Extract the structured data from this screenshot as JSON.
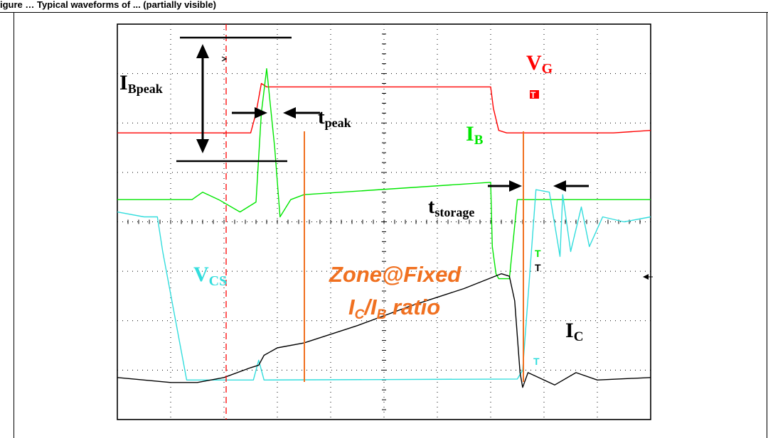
{
  "header": {
    "caption": "igure … Typical waveforms of ... (partially visible)"
  },
  "colors": {
    "vg": "#ff0000",
    "ib": "#00e600",
    "vcs": "#33dddd",
    "ic": "#000000",
    "zone": "#f07020",
    "grid": "#000000"
  },
  "labels": {
    "ibpeak": {
      "main": "I",
      "sub": "Bpeak"
    },
    "tpeak": {
      "main": "t",
      "sub": "peak"
    },
    "vg": {
      "main": "V",
      "sub": "G"
    },
    "ib": {
      "main": "I",
      "sub": "B"
    },
    "tstorage": {
      "main": "t",
      "sub": "storage"
    },
    "vcs": {
      "main": "V",
      "sub": "CS"
    },
    "zone_line1": "Zone@Fixed",
    "zone_ratio": {
      "i1": "I",
      "s1": "C",
      "slash": "/",
      "i2": "I",
      "s2": "B",
      "tail": " ratio"
    },
    "ic": {
      "main": "I",
      "sub": "C"
    },
    "marker_t": "T"
  },
  "chart_data": {
    "type": "line",
    "title": "",
    "xlabel": "",
    "ylabel": "",
    "grid": true,
    "grid_divisions": {
      "x": 10,
      "y": 8
    },
    "xlim": [
      0,
      10
    ],
    "ylim": [
      0,
      8
    ],
    "series": [
      {
        "name": "VG",
        "x": [
          0,
          1.3,
          2.5,
          2.6,
          2.7,
          2.8,
          2.9,
          7.0,
          7.05,
          7.15,
          7.3,
          9.3,
          10.0
        ],
        "y": [
          5.8,
          5.8,
          5.8,
          6.2,
          6.8,
          6.73,
          6.73,
          6.73,
          6.3,
          5.85,
          5.8,
          5.8,
          5.85
        ]
      },
      {
        "name": "IB",
        "x": [
          0,
          1.4,
          1.6,
          1.9,
          2.3,
          2.6,
          2.7,
          2.8,
          2.95,
          3.05,
          3.25,
          3.5,
          7.0,
          7.03,
          7.1,
          7.15,
          7.35,
          7.5,
          7.65,
          10.0
        ],
        "y": [
          4.45,
          4.45,
          4.6,
          4.45,
          4.2,
          4.4,
          6.2,
          7.1,
          5.5,
          4.1,
          4.45,
          4.55,
          4.8,
          3.5,
          2.95,
          2.85,
          2.85,
          4.45,
          4.45,
          4.45
        ]
      },
      {
        "name": "VCS",
        "x": [
          0,
          0.5,
          0.75,
          0.85,
          1.3,
          1.7,
          2.55,
          2.65,
          2.75,
          7.5,
          7.6,
          7.85,
          8.1,
          8.3,
          8.35,
          8.5,
          8.7,
          8.85,
          9.1,
          9.5,
          10.0
        ],
        "y": [
          4.2,
          4.1,
          4.1,
          3.4,
          0.8,
          0.8,
          0.8,
          1.2,
          0.8,
          0.82,
          1.0,
          4.65,
          4.6,
          3.3,
          4.55,
          3.4,
          4.3,
          3.5,
          4.1,
          4.0,
          4.1
        ]
      },
      {
        "name": "IC",
        "x": [
          0,
          1.0,
          1.5,
          2.0,
          2.5,
          2.65,
          2.75,
          3.0,
          3.5,
          4.5,
          5.5,
          6.5,
          7.2,
          7.35,
          7.45,
          7.55,
          7.6,
          7.7,
          8.2,
          8.6,
          9.0,
          10.0
        ],
        "y": [
          0.85,
          0.75,
          0.75,
          0.85,
          1.05,
          1.1,
          1.3,
          1.45,
          1.55,
          1.9,
          2.3,
          2.65,
          2.95,
          2.9,
          2.4,
          0.95,
          0.65,
          0.95,
          0.7,
          0.95,
          0.8,
          0.85
        ]
      }
    ]
  }
}
